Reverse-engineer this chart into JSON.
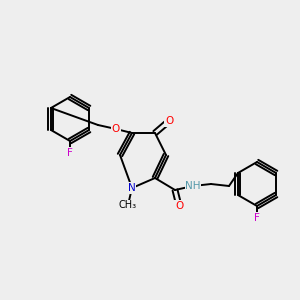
{
  "bg_color": "#eeeeee",
  "bond_color": "#000000",
  "atom_colors": {
    "N": "#0000cc",
    "O": "#ff0000",
    "F": "#cc00cc",
    "H_label": "#5599aa",
    "C": "#000000"
  },
  "font_size": 7.5,
  "lw": 1.4
}
